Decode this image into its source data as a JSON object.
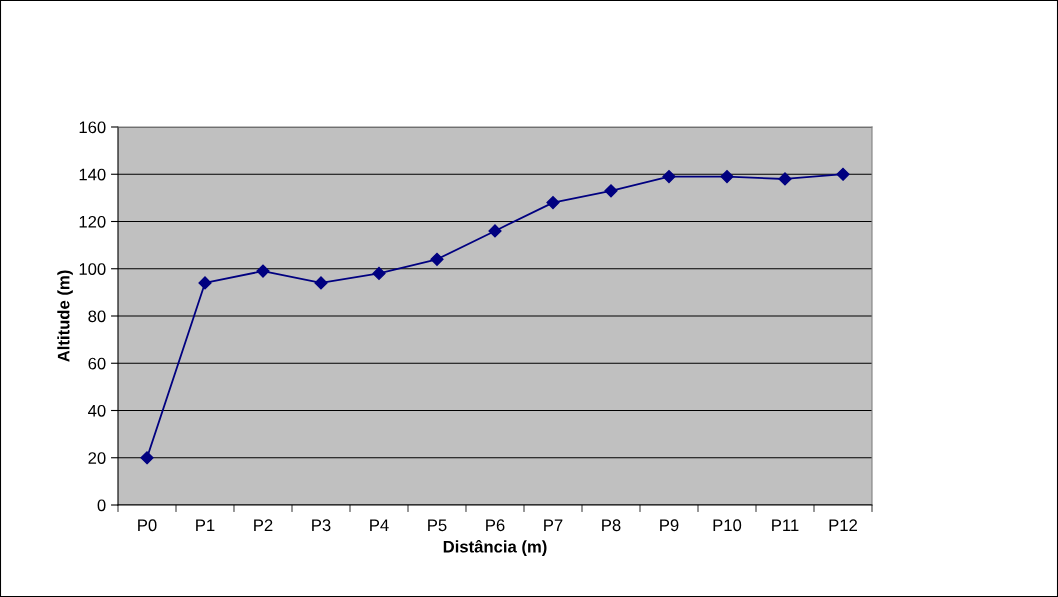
{
  "chart_data": {
    "type": "line",
    "xlabel": "Distância (m)",
    "ylabel": "Altitude (m)",
    "categories": [
      "P0",
      "P1",
      "P2",
      "P3",
      "P4",
      "P5",
      "P6",
      "P7",
      "P8",
      "P9",
      "P10",
      "P11",
      "P12"
    ],
    "series": [
      {
        "color": "#000080",
        "values": [
          20,
          94,
          99,
          94,
          98,
          104,
          116,
          128,
          133,
          139,
          139,
          138,
          140
        ]
      }
    ],
    "ylim": [
      0,
      160
    ],
    "yticks": [
      0,
      20,
      40,
      60,
      80,
      100,
      120,
      140,
      160
    ],
    "grid": "y",
    "marker": "diamond",
    "line_style": "solid",
    "legend": false
  }
}
